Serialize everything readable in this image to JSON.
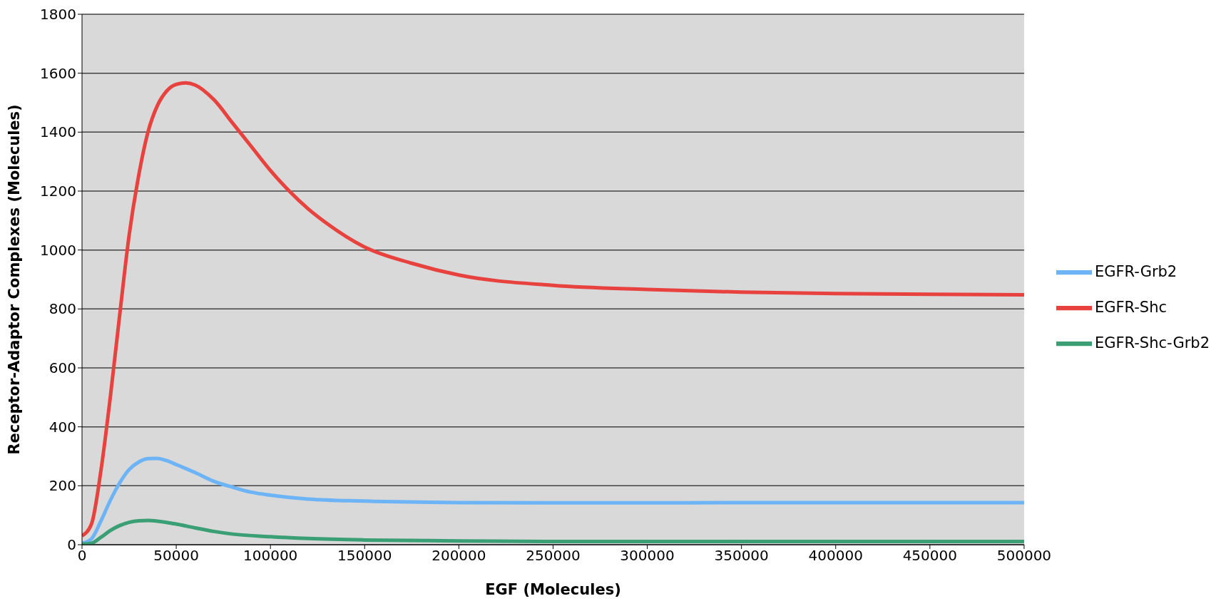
{
  "chart_data": {
    "type": "line",
    "xlabel": "EGF (Molecules)",
    "ylabel": "Receptor-Adaptor Complexes (Molecules)",
    "xlim": [
      0,
      500000
    ],
    "xticks": [
      0,
      50000,
      100000,
      150000,
      200000,
      250000,
      300000,
      350000,
      400000,
      450000,
      500000
    ],
    "ylim": [
      0,
      1800
    ],
    "yticks": [
      0,
      200,
      400,
      600,
      800,
      1000,
      1200,
      1400,
      1600,
      1800
    ],
    "grid": "y",
    "legend": "right",
    "marker": "none",
    "line_style": "solid",
    "series": [
      {
        "name": "EGFR-Grb2",
        "color": "#6cb4f5",
        "x": [
          0,
          5000,
          10000,
          15000,
          20000,
          25000,
          30000,
          35000,
          40000,
          45000,
          50000,
          60000,
          70000,
          80000,
          90000,
          100000,
          120000,
          150000,
          200000,
          250000,
          300000,
          350000,
          400000,
          500000
        ],
        "values": [
          5,
          20,
          80,
          150,
          210,
          255,
          280,
          292,
          293,
          285,
          272,
          245,
          215,
          195,
          178,
          168,
          155,
          148,
          143,
          142,
          142,
          143,
          143,
          143
        ]
      },
      {
        "name": "EGFR-Shc",
        "color": "#e8423f",
        "x": [
          0,
          5000,
          10000,
          15000,
          20000,
          25000,
          30000,
          35000,
          40000,
          45000,
          50000,
          55000,
          60000,
          70000,
          80000,
          90000,
          100000,
          110000,
          120000,
          130000,
          150000,
          175000,
          200000,
          250000,
          300000,
          350000,
          400000,
          450000,
          500000
        ],
        "values": [
          30,
          70,
          250,
          500,
          780,
          1050,
          1250,
          1400,
          1490,
          1540,
          1562,
          1567,
          1560,
          1510,
          1430,
          1350,
          1270,
          1200,
          1140,
          1090,
          1010,
          955,
          915,
          880,
          866,
          857,
          852,
          850,
          848
        ]
      },
      {
        "name": "EGFR-Shc-Grb2",
        "color": "#3a9f74",
        "x": [
          0,
          5000,
          10000,
          15000,
          20000,
          25000,
          30000,
          35000,
          40000,
          50000,
          60000,
          70000,
          80000,
          100000,
          120000,
          150000,
          200000,
          250000,
          300000,
          500000
        ],
        "values": [
          2,
          5,
          25,
          48,
          65,
          76,
          81,
          82,
          80,
          70,
          57,
          45,
          36,
          27,
          21,
          16,
          13,
          11,
          11,
          11
        ]
      }
    ]
  }
}
